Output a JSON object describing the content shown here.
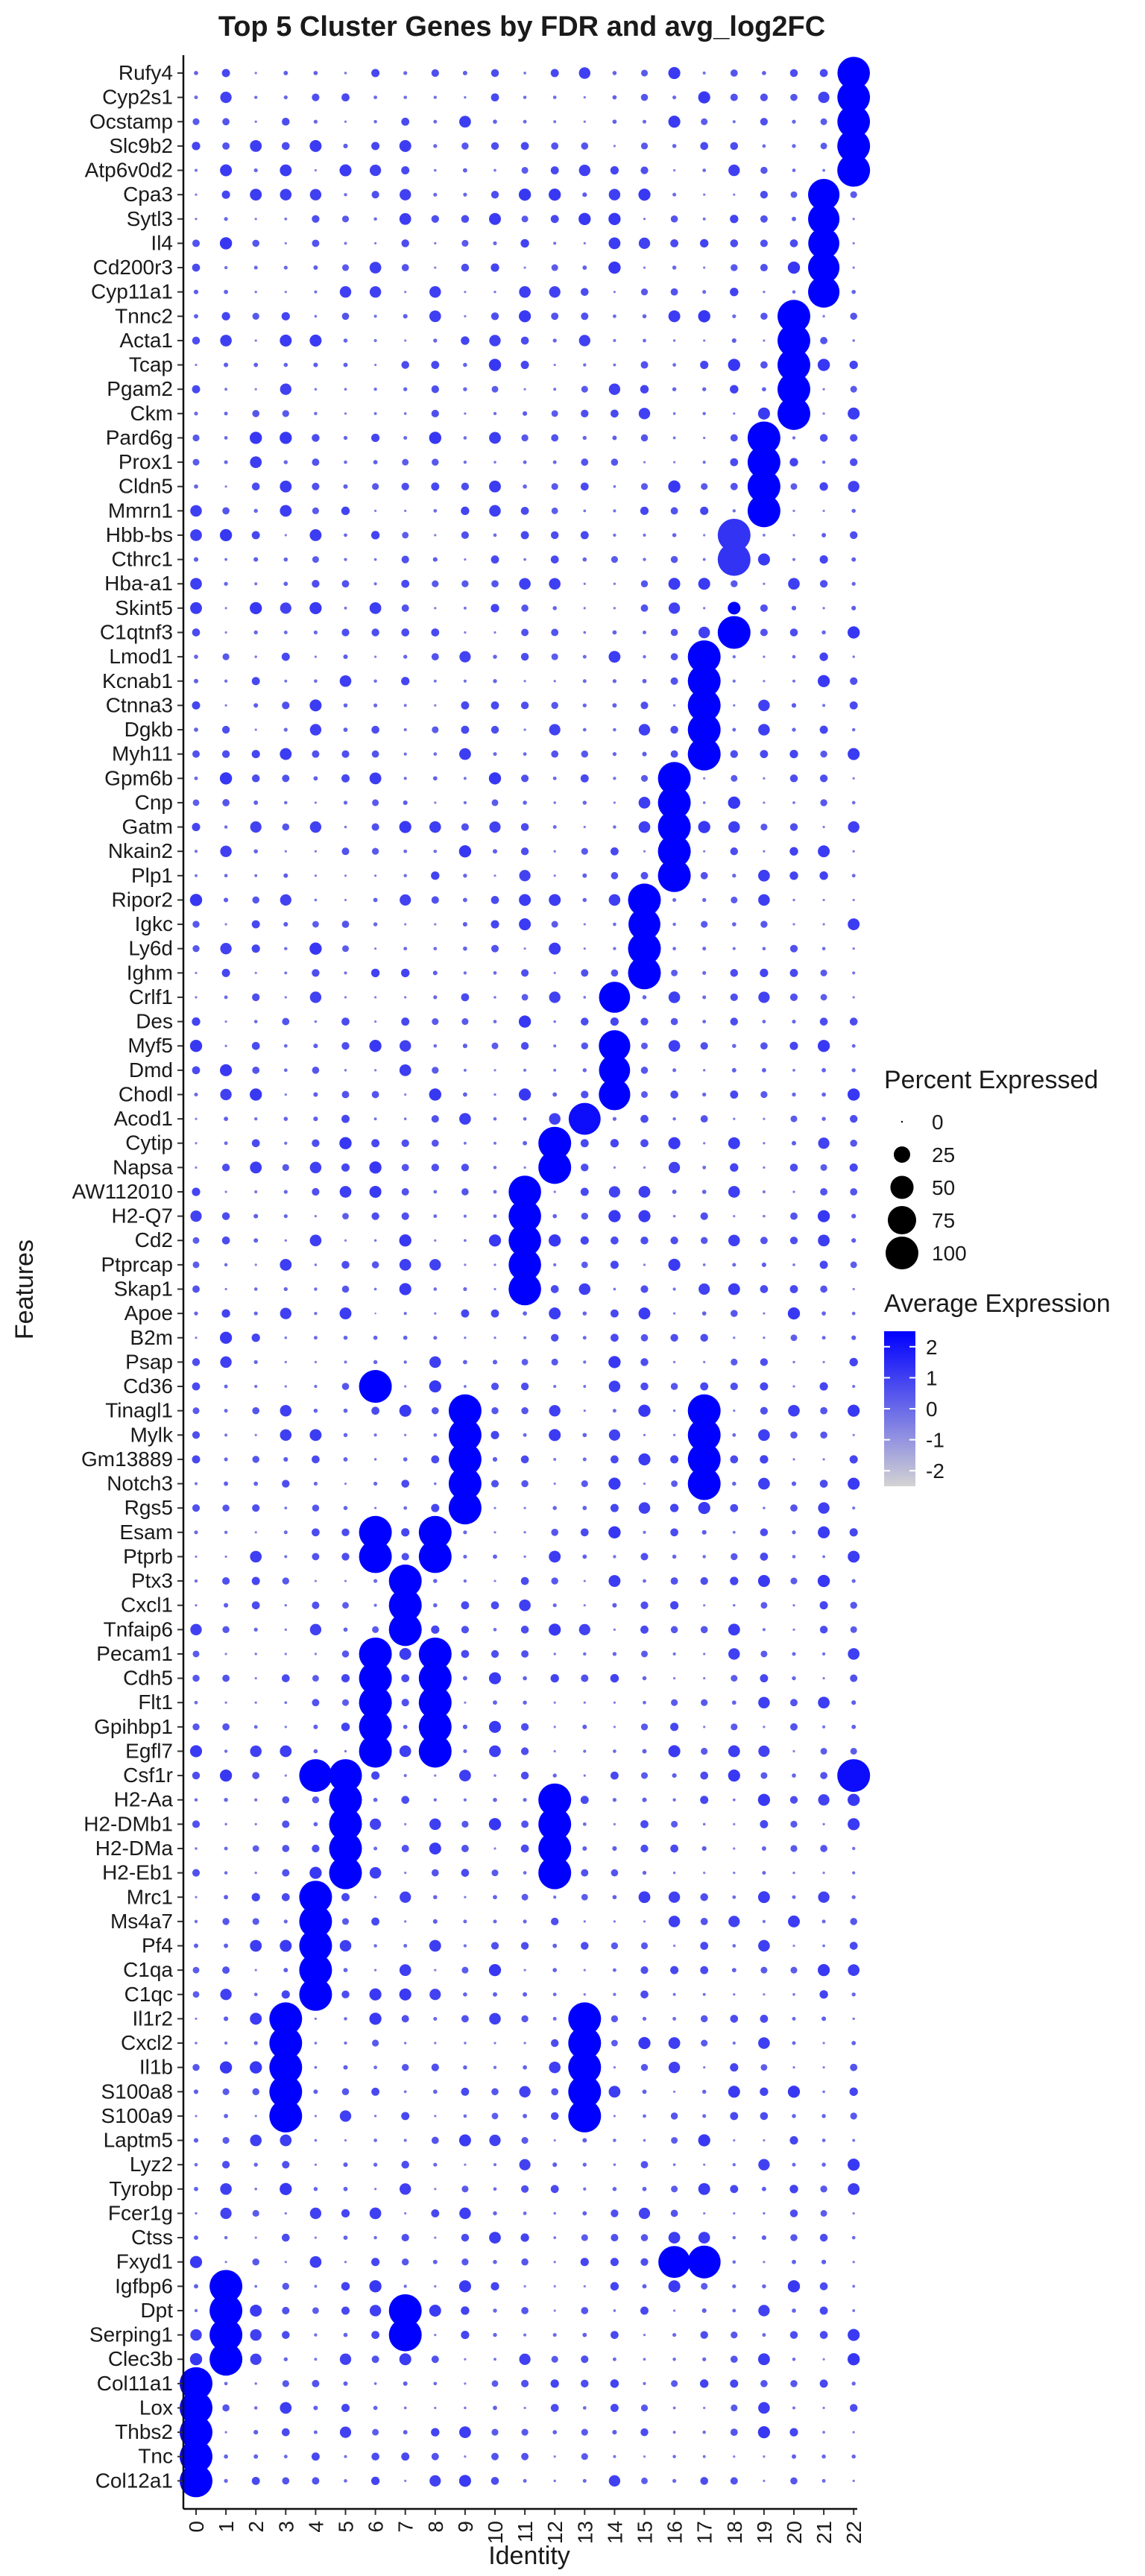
{
  "chart_data": {
    "type": "dotplot",
    "title": "Top 5 Cluster Genes by FDR and avg_log2FC",
    "xlabel": "Identity",
    "ylabel": "Features",
    "x_categories": [
      "0",
      "1",
      "2",
      "3",
      "4",
      "5",
      "6",
      "7",
      "8",
      "9",
      "10",
      "11",
      "12",
      "13",
      "14",
      "15",
      "16",
      "17",
      "18",
      "19",
      "20",
      "21",
      "22"
    ],
    "features": [
      "Rufy4",
      "Cyp2s1",
      "Ocstamp",
      "Slc9b2",
      "Atp6v0d2",
      "Cpa3",
      "Sytl3",
      "Il4",
      "Cd200r3",
      "Cyp11a1",
      "Tnnc2",
      "Acta1",
      "Tcap",
      "Pgam2",
      "Ckm",
      "Pard6g",
      "Prox1",
      "Cldn5",
      "Mmrn1",
      "Hbb-bs",
      "Cthrc1",
      "Hba-a1",
      "Skint5",
      "C1qtnf3",
      "Lmod1",
      "Kcnab1",
      "Ctnna3",
      "Dgkb",
      "Myh11",
      "Gpm6b",
      "Cnp",
      "Gatm",
      "Nkain2",
      "Plp1",
      "Ripor2",
      "Igkc",
      "Ly6d",
      "Ighm",
      "Crlf1",
      "Des",
      "Myf5",
      "Dmd",
      "Chodl",
      "Acod1",
      "Cytip",
      "Napsa",
      "AW112010",
      "H2-Q7",
      "Cd2",
      "Ptprcap",
      "Skap1",
      "Apoe",
      "B2m",
      "Psap",
      "Cd36",
      "Tinagl1",
      "Mylk",
      "Gm13889",
      "Notch3",
      "Rgs5",
      "Esam",
      "Ptprb",
      "Ptx3",
      "Cxcl1",
      "Tnfaip6",
      "Pecam1",
      "Cdh5",
      "Flt1",
      "Gpihbp1",
      "Egfl7",
      "Csf1r",
      "H2-Aa",
      "H2-DMb1",
      "H2-DMa",
      "H2-Eb1",
      "Mrc1",
      "Ms4a7",
      "Pf4",
      "C1qa",
      "C1qc",
      "Il1r2",
      "Cxcl2",
      "Il1b",
      "S100a8",
      "S100a9",
      "Laptm5",
      "Lyz2",
      "Tyrobp",
      "Fcer1g",
      "Ctss",
      "Fxyd1",
      "Igfbp6",
      "Dpt",
      "Serping1",
      "Clec3b",
      "Col11a1",
      "Lox",
      "Thbs2",
      "Tnc",
      "Col12a1"
    ],
    "size_legend": {
      "title": "Percent Expressed",
      "breaks": [
        0,
        25,
        50,
        75,
        100
      ]
    },
    "color_legend": {
      "title": "Average Expression",
      "breaks": [
        2,
        1,
        0,
        -1,
        -2
      ],
      "low_color": "#d3d3d3",
      "high_color": "#0000ff",
      "limits": [
        -2.5,
        2.5
      ]
    },
    "points": [
      [
        "Rufy4",
        22,
        98,
        2.5
      ],
      [
        "Cyp2s1",
        22,
        99,
        2.5
      ],
      [
        "Ocstamp",
        22,
        99,
        2.5
      ],
      [
        "Slc9b2",
        22,
        100,
        2.5
      ],
      [
        "Atp6v0d2",
        22,
        100,
        2.5
      ],
      [
        "Cpa3",
        21,
        92,
        2.5
      ],
      [
        "Sytl3",
        21,
        92,
        2.5
      ],
      [
        "Il4",
        21,
        90,
        2.5
      ],
      [
        "Cd200r3",
        21,
        92,
        2.5
      ],
      [
        "Cyp11a1",
        21,
        92,
        2.5
      ],
      [
        "Tnnc2",
        20,
        100,
        2.5
      ],
      [
        "Acta1",
        20,
        100,
        2.5
      ],
      [
        "Tcap",
        20,
        100,
        2.5
      ],
      [
        "Pgam2",
        20,
        100,
        2.5
      ],
      [
        "Ckm",
        20,
        100,
        2.5
      ],
      [
        "Pard6g",
        19,
        100,
        2.5
      ],
      [
        "Prox1",
        19,
        100,
        2.5
      ],
      [
        "Cldn5",
        19,
        100,
        2.5
      ],
      [
        "Mmrn1",
        19,
        100,
        2.5
      ],
      [
        "Hbb-bs",
        18,
        100,
        1.3
      ],
      [
        "Cthrc1",
        18,
        100,
        1.3
      ],
      [
        "Skint5",
        18,
        15,
        2.5
      ],
      [
        "C1qtnf3",
        18,
        100,
        2.5
      ],
      [
        "Lmod1",
        17,
        100,
        2.5
      ],
      [
        "Kcnab1",
        17,
        100,
        2.5
      ],
      [
        "Ctnna3",
        17,
        100,
        2.5
      ],
      [
        "Dgkb",
        17,
        100,
        2.5
      ],
      [
        "Myh11",
        17,
        100,
        2.5
      ],
      [
        "Gpm6b",
        16,
        100,
        2.5
      ],
      [
        "Cnp",
        16,
        100,
        2.5
      ],
      [
        "Gatm",
        16,
        100,
        2.5
      ],
      [
        "Nkain2",
        16,
        100,
        2.5
      ],
      [
        "Plp1",
        16,
        100,
        2.5
      ],
      [
        "Ripor2",
        15,
        100,
        2.5
      ],
      [
        "Igkc",
        15,
        95,
        2.5
      ],
      [
        "Ly6d",
        15,
        100,
        2.5
      ],
      [
        "Ighm",
        15,
        100,
        2.5
      ],
      [
        "Crlf1",
        14,
        90,
        2.5
      ],
      [
        "Myf5",
        14,
        92,
        2.5
      ],
      [
        "Dmd",
        14,
        90,
        2.5
      ],
      [
        "Chodl",
        14,
        92,
        2.5
      ],
      [
        "Acod1",
        13,
        95,
        2.2
      ],
      [
        "Cytip",
        12,
        100,
        2.5
      ],
      [
        "Napsa",
        12,
        100,
        2.5
      ],
      [
        "AW112010",
        11,
        98,
        2.5
      ],
      [
        "H2-Q7",
        11,
        98,
        2.5
      ],
      [
        "Cd2",
        11,
        98,
        2.5
      ],
      [
        "Ptprcap",
        11,
        98,
        2.5
      ],
      [
        "Skap1",
        11,
        98,
        2.5
      ],
      [
        "Cd36",
        6,
        100,
        2.5
      ],
      [
        "Tinagl1",
        9,
        100,
        2.5
      ],
      [
        "Mylk",
        9,
        100,
        2.5
      ],
      [
        "Gm13889",
        9,
        100,
        2.5
      ],
      [
        "Notch3",
        9,
        100,
        2.5
      ],
      [
        "Rgs5",
        9,
        100,
        2.5
      ],
      [
        "Tinagl1",
        17,
        100,
        2.5
      ],
      [
        "Mylk",
        17,
        100,
        2.5
      ],
      [
        "Gm13889",
        17,
        100,
        2.5
      ],
      [
        "Notch3",
        17,
        100,
        2.5
      ],
      [
        "Esam",
        6,
        100,
        2.5
      ],
      [
        "Ptprb",
        6,
        100,
        2.5
      ],
      [
        "Esam",
        8,
        100,
        2.5
      ],
      [
        "Ptprb",
        8,
        100,
        2.5
      ],
      [
        "Ptx3",
        7,
        100,
        2.5
      ],
      [
        "Cxcl1",
        7,
        100,
        2.5
      ],
      [
        "Tnfaip6",
        7,
        100,
        2.5
      ],
      [
        "Pecam1",
        6,
        100,
        2.5
      ],
      [
        "Cdh5",
        6,
        100,
        2.5
      ],
      [
        "Flt1",
        6,
        100,
        2.5
      ],
      [
        "Gpihbp1",
        6,
        100,
        2.5
      ],
      [
        "Egfl7",
        6,
        100,
        2.5
      ],
      [
        "Pecam1",
        8,
        100,
        2.5
      ],
      [
        "Cdh5",
        8,
        100,
        2.5
      ],
      [
        "Flt1",
        8,
        100,
        2.5
      ],
      [
        "Gpihbp1",
        8,
        100,
        2.5
      ],
      [
        "Egfl7",
        8,
        100,
        2.5
      ],
      [
        "Csf1r",
        4,
        100,
        2.5
      ],
      [
        "Csf1r",
        5,
        100,
        2.5
      ],
      [
        "Csf1r",
        22,
        100,
        2.2
      ],
      [
        "H2-Aa",
        5,
        100,
        2.5
      ],
      [
        "H2-DMb1",
        5,
        100,
        2.5
      ],
      [
        "H2-DMa",
        5,
        100,
        2.5
      ],
      [
        "H2-Eb1",
        5,
        100,
        2.5
      ],
      [
        "H2-Aa",
        12,
        100,
        2.5
      ],
      [
        "H2-DMb1",
        12,
        100,
        2.5
      ],
      [
        "H2-DMa",
        12,
        100,
        2.5
      ],
      [
        "H2-Eb1",
        12,
        100,
        2.5
      ],
      [
        "Mrc1",
        4,
        100,
        2.5
      ],
      [
        "Ms4a7",
        4,
        100,
        2.5
      ],
      [
        "Pf4",
        4,
        100,
        2.5
      ],
      [
        "C1qa",
        4,
        100,
        2.5
      ],
      [
        "C1qc",
        4,
        100,
        2.5
      ],
      [
        "Il1r2",
        3,
        100,
        2.5
      ],
      [
        "Cxcl2",
        3,
        100,
        2.5
      ],
      [
        "Il1b",
        3,
        100,
        2.5
      ],
      [
        "S100a8",
        3,
        100,
        2.5
      ],
      [
        "S100a9",
        3,
        100,
        2.5
      ],
      [
        "Il1r2",
        13,
        100,
        2.5
      ],
      [
        "Cxcl2",
        13,
        100,
        2.5
      ],
      [
        "Il1b",
        13,
        100,
        2.5
      ],
      [
        "S100a8",
        13,
        100,
        2.5
      ],
      [
        "S100a9",
        13,
        100,
        2.5
      ],
      [
        "Fxyd1",
        17,
        100,
        2.5
      ],
      [
        "Fxyd1",
        16,
        95,
        2.5
      ],
      [
        "Igfbp6",
        1,
        100,
        2.5
      ],
      [
        "Dpt",
        1,
        100,
        2.5
      ],
      [
        "Serping1",
        1,
        100,
        2.5
      ],
      [
        "Clec3b",
        1,
        100,
        2.5
      ],
      [
        "Dpt",
        7,
        100,
        2.5
      ],
      [
        "Serping1",
        7,
        100,
        2.5
      ],
      [
        "Col11a1",
        0,
        100,
        2.5
      ],
      [
        "Lox",
        0,
        100,
        2.5
      ],
      [
        "Thbs2",
        0,
        100,
        2.5
      ],
      [
        "Tnc",
        0,
        100,
        2.5
      ],
      [
        "Col12a1",
        0,
        100,
        2.5
      ]
    ]
  }
}
